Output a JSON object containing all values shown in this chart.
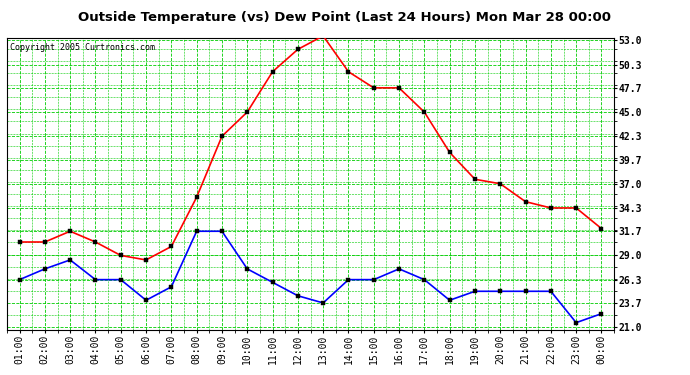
{
  "title": "Outside Temperature (vs) Dew Point (Last 24 Hours) Mon Mar 28 00:00",
  "copyright": "Copyright 2005 Curtronics.com",
  "x_labels": [
    "01:00",
    "02:00",
    "03:00",
    "04:00",
    "05:00",
    "06:00",
    "07:00",
    "08:00",
    "09:00",
    "10:00",
    "11:00",
    "12:00",
    "13:00",
    "14:00",
    "15:00",
    "16:00",
    "17:00",
    "18:00",
    "19:00",
    "20:00",
    "21:00",
    "22:00",
    "23:00",
    "00:00"
  ],
  "temp_data": [
    30.5,
    30.5,
    31.7,
    30.5,
    29.0,
    28.5,
    30.0,
    35.5,
    42.3,
    45.0,
    49.5,
    52.0,
    53.5,
    49.5,
    47.7,
    47.7,
    45.0,
    40.5,
    37.5,
    37.0,
    35.0,
    34.3,
    34.3,
    32.0
  ],
  "dew_data": [
    26.3,
    27.5,
    28.5,
    26.3,
    26.3,
    24.0,
    25.5,
    31.7,
    31.7,
    27.5,
    26.0,
    24.5,
    23.7,
    26.3,
    26.3,
    27.5,
    26.3,
    24.0,
    25.0,
    25.0,
    25.0,
    25.0,
    21.5,
    22.5
  ],
  "temp_color": "#ff0000",
  "dew_color": "#0000ff",
  "bg_color": "#ffffff",
  "plot_bg_color": "#ffffff",
  "grid_color": "#00cc00",
  "title_color": "#000000",
  "y_ticks": [
    21.0,
    23.7,
    26.3,
    29.0,
    31.7,
    34.3,
    37.0,
    39.7,
    42.3,
    45.0,
    47.7,
    50.3,
    53.0
  ],
  "y_min": 21.0,
  "y_max": 53.0,
  "marker": "s",
  "marker_size": 2.5,
  "linewidth": 1.2,
  "title_fontsize": 9.5,
  "copyright_fontsize": 6.0,
  "tick_fontsize": 7.0
}
